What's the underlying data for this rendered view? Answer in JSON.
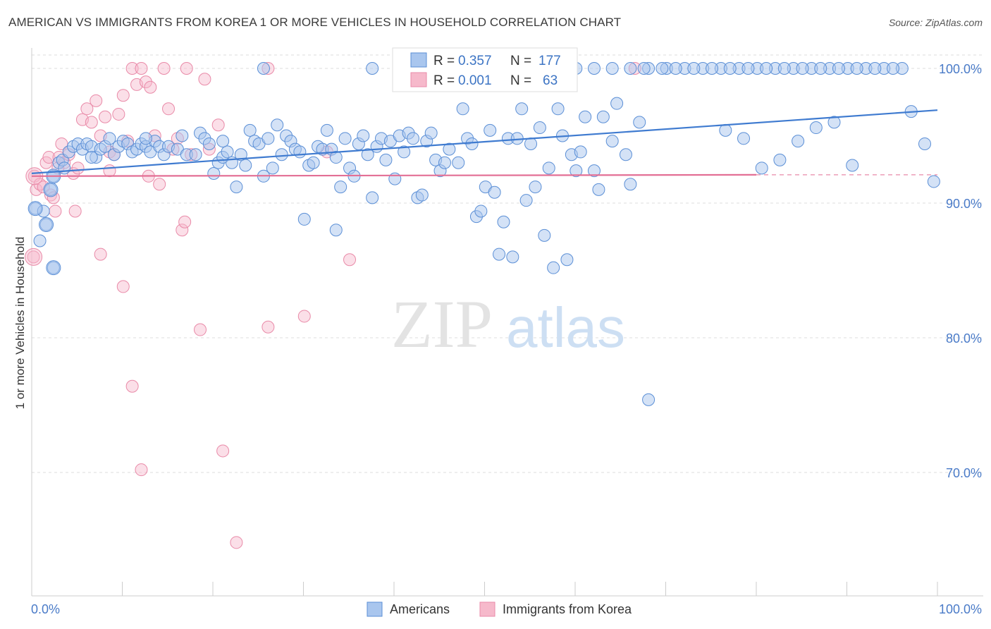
{
  "title": "AMERICAN VS IMMIGRANTS FROM KOREA 1 OR MORE VEHICLES IN HOUSEHOLD CORRELATION CHART",
  "source": "Source: ZipAtlas.com",
  "watermark": {
    "zip": "ZIP",
    "atlas": "atlas"
  },
  "colors": {
    "blue_fill": "#a9c6ee",
    "blue_stroke": "#5b8fd6",
    "blue_line": "#3f7bd0",
    "pink_fill": "#f6b9cb",
    "pink_stroke": "#e98aa8",
    "pink_line": "#e36f95",
    "grid": "#dddddd",
    "axis_text": "#4a7bc8"
  },
  "stats_legend": {
    "rows": [
      {
        "r_label": "R =",
        "r_value": "0.357",
        "n_label": "N =",
        "n_value": "177"
      },
      {
        "r_label": "R =",
        "r_value": "0.001",
        "n_label": "N =",
        "n_value": "63"
      }
    ]
  },
  "chart_data": {
    "type": "scatter",
    "xlabel": "",
    "ylabel": "1 or more Vehicles in Household",
    "xlim": [
      0,
      100
    ],
    "ylim": [
      60,
      104
    ],
    "x_tick_labels": [
      "0.0%",
      "100.0%"
    ],
    "y_ticks": [
      70,
      80,
      90,
      100
    ],
    "y_tick_labels": [
      "70.0%",
      "80.0%",
      "90.0%",
      "100.0%"
    ],
    "grid": "horizontal-dashed",
    "legend_position": "bottom-center",
    "series": [
      {
        "name": "Americans",
        "trend": {
          "x": [
            0,
            100
          ],
          "y": [
            92.1,
            96.9
          ]
        },
        "points": [
          [
            0.4,
            89.6
          ],
          [
            0.9,
            87.2
          ],
          [
            1.3,
            89.4
          ],
          [
            1.6,
            88.4
          ],
          [
            2.1,
            91.0
          ],
          [
            2.4,
            85.2
          ],
          [
            3.0,
            93.0
          ],
          [
            3.4,
            93.2
          ],
          [
            3.6,
            92.6
          ],
          [
            2.4,
            92.0
          ],
          [
            4.1,
            93.8
          ],
          [
            4.6,
            94.2
          ],
          [
            5.1,
            94.4
          ],
          [
            5.6,
            94.0
          ],
          [
            6.1,
            94.4
          ],
          [
            6.6,
            94.2
          ],
          [
            7.1,
            93.4
          ],
          [
            7.6,
            94.0
          ],
          [
            8.1,
            94.2
          ],
          [
            8.6,
            94.8
          ],
          [
            9.1,
            93.6
          ],
          [
            9.6,
            94.2
          ],
          [
            10.1,
            94.6
          ],
          [
            10.6,
            94.4
          ],
          [
            11.1,
            93.8
          ],
          [
            11.6,
            94.0
          ],
          [
            12.1,
            94.4
          ],
          [
            12.6,
            94.2
          ],
          [
            13.1,
            93.8
          ],
          [
            13.6,
            94.6
          ],
          [
            14.1,
            94.2
          ],
          [
            14.6,
            93.6
          ],
          [
            15.1,
            94.2
          ],
          [
            16.1,
            94.0
          ],
          [
            16.6,
            95.0
          ],
          [
            17.1,
            93.6
          ],
          [
            18.1,
            93.6
          ],
          [
            18.6,
            95.2
          ],
          [
            19.1,
            94.8
          ],
          [
            19.6,
            94.4
          ],
          [
            20.1,
            92.2
          ],
          [
            20.6,
            93.0
          ],
          [
            21.1,
            93.4
          ],
          [
            21.6,
            93.8
          ],
          [
            22.1,
            93.0
          ],
          [
            22.6,
            91.2
          ],
          [
            23.1,
            93.6
          ],
          [
            23.6,
            92.8
          ],
          [
            24.1,
            95.4
          ],
          [
            24.6,
            94.6
          ],
          [
            25.1,
            94.4
          ],
          [
            25.6,
            92.0
          ],
          [
            26.1,
            94.8
          ],
          [
            26.6,
            92.6
          ],
          [
            27.1,
            95.8
          ],
          [
            27.6,
            93.6
          ],
          [
            28.1,
            95.0
          ],
          [
            28.6,
            94.6
          ],
          [
            29.1,
            94.0
          ],
          [
            29.6,
            93.8
          ],
          [
            30.1,
            88.8
          ],
          [
            30.6,
            92.8
          ],
          [
            31.1,
            93.0
          ],
          [
            31.6,
            94.2
          ],
          [
            32.1,
            94.0
          ],
          [
            32.6,
            95.4
          ],
          [
            33.1,
            94.0
          ],
          [
            33.6,
            93.4
          ],
          [
            34.1,
            91.2
          ],
          [
            34.6,
            94.8
          ],
          [
            35.1,
            92.6
          ],
          [
            35.6,
            92.0
          ],
          [
            36.1,
            94.4
          ],
          [
            36.6,
            95.0
          ],
          [
            37.1,
            93.6
          ],
          [
            37.6,
            90.4
          ],
          [
            38.1,
            94.2
          ],
          [
            38.6,
            94.8
          ],
          [
            39.1,
            93.2
          ],
          [
            39.6,
            94.6
          ],
          [
            40.1,
            91.8
          ],
          [
            40.6,
            95.0
          ],
          [
            41.1,
            93.8
          ],
          [
            41.6,
            95.2
          ],
          [
            42.1,
            94.8
          ],
          [
            42.6,
            90.4
          ],
          [
            43.1,
            90.6
          ],
          [
            43.6,
            94.6
          ],
          [
            44.1,
            95.2
          ],
          [
            44.6,
            93.2
          ],
          [
            45.1,
            92.4
          ],
          [
            45.6,
            93.0
          ],
          [
            46.1,
            94.0
          ],
          [
            47.1,
            93.0
          ],
          [
            47.6,
            97.0
          ],
          [
            48.1,
            94.8
          ],
          [
            48.6,
            94.4
          ],
          [
            49.1,
            89.0
          ],
          [
            49.6,
            89.4
          ],
          [
            50.1,
            91.2
          ],
          [
            50.6,
            95.4
          ],
          [
            51.1,
            90.8
          ],
          [
            51.6,
            86.2
          ],
          [
            52.1,
            88.6
          ],
          [
            52.6,
            94.8
          ],
          [
            53.1,
            86.0
          ],
          [
            53.6,
            94.8
          ],
          [
            54.1,
            97.0
          ],
          [
            54.6,
            90.2
          ],
          [
            55.1,
            94.4
          ],
          [
            55.6,
            91.2
          ],
          [
            56.1,
            95.6
          ],
          [
            56.6,
            87.6
          ],
          [
            57.1,
            92.6
          ],
          [
            57.6,
            85.2
          ],
          [
            58.1,
            97.0
          ],
          [
            58.6,
            95.0
          ],
          [
            59.1,
            85.8
          ],
          [
            59.6,
            93.6
          ],
          [
            60.1,
            92.4
          ],
          [
            60.6,
            93.8
          ],
          [
            61.1,
            96.4
          ],
          [
            62.1,
            92.4
          ],
          [
            62.6,
            91.0
          ],
          [
            63.1,
            96.4
          ],
          [
            64.1,
            94.6
          ],
          [
            64.6,
            97.4
          ],
          [
            65.6,
            93.6
          ],
          [
            66.1,
            91.4
          ],
          [
            67.1,
            96.0
          ],
          [
            68.1,
            75.4
          ],
          [
            55.1,
            99.4
          ],
          [
            57.1,
            99.2
          ],
          [
            58.6,
            100.0
          ],
          [
            60.1,
            100.0
          ],
          [
            62.1,
            100.0
          ],
          [
            64.1,
            100.0
          ],
          [
            66.1,
            100.0
          ],
          [
            68.1,
            100.0
          ],
          [
            70.1,
            100.0
          ],
          [
            72.1,
            100.0
          ],
          [
            74.1,
            100.0
          ],
          [
            76.1,
            100.0
          ],
          [
            78.1,
            100.0
          ],
          [
            80.1,
            100.0
          ],
          [
            82.1,
            100.0
          ],
          [
            84.1,
            100.0
          ],
          [
            86.1,
            100.0
          ],
          [
            88.1,
            100.0
          ],
          [
            90.1,
            100.0
          ],
          [
            92.1,
            100.0
          ],
          [
            94.1,
            100.0
          ],
          [
            96.1,
            100.0
          ],
          [
            97.1,
            96.8
          ],
          [
            98.6,
            94.4
          ],
          [
            99.6,
            91.6
          ],
          [
            25.6,
            100.0
          ],
          [
            43.6,
            100.0
          ],
          [
            45.6,
            100.0
          ],
          [
            37.6,
            100.0
          ],
          [
            71.1,
            100.0
          ],
          [
            73.1,
            100.0
          ],
          [
            75.1,
            100.0
          ],
          [
            77.1,
            100.0
          ],
          [
            79.1,
            100.0
          ],
          [
            81.1,
            100.0
          ],
          [
            83.1,
            100.0
          ],
          [
            85.1,
            100.0
          ],
          [
            87.1,
            100.0
          ],
          [
            89.1,
            100.0
          ],
          [
            91.1,
            100.0
          ],
          [
            93.1,
            100.0
          ],
          [
            95.1,
            100.0
          ],
          [
            67.6,
            100.0
          ],
          [
            69.6,
            100.0
          ],
          [
            76.6,
            95.4
          ],
          [
            78.6,
            94.8
          ],
          [
            80.6,
            92.6
          ],
          [
            82.6,
            93.2
          ],
          [
            84.6,
            94.6
          ],
          [
            86.6,
            95.6
          ],
          [
            88.6,
            96.0
          ],
          [
            90.6,
            92.8
          ],
          [
            33.6,
            88.0
          ],
          [
            12.6,
            94.8
          ],
          [
            6.6,
            93.4
          ],
          [
            21.1,
            94.6
          ]
        ]
      },
      {
        "name": "Immigrants from Korea",
        "trend": {
          "x": [
            0,
            80
          ],
          "y": [
            92.0,
            92.1
          ]
        },
        "trend_dashed": {
          "x": [
            80,
            100
          ],
          "y": [
            92.1,
            92.1
          ]
        },
        "points": [
          [
            0.3,
            92.0
          ],
          [
            0.5,
            91.0
          ],
          [
            0.9,
            91.4
          ],
          [
            1.3,
            91.2
          ],
          [
            1.6,
            93.0
          ],
          [
            1.9,
            93.4
          ],
          [
            2.1,
            90.6
          ],
          [
            2.4,
            90.4
          ],
          [
            2.6,
            89.4
          ],
          [
            3.0,
            93.4
          ],
          [
            3.3,
            94.4
          ],
          [
            3.6,
            93.0
          ],
          [
            4.1,
            93.6
          ],
          [
            4.6,
            92.2
          ],
          [
            4.8,
            89.4
          ],
          [
            5.1,
            92.6
          ],
          [
            5.6,
            96.2
          ],
          [
            6.1,
            97.0
          ],
          [
            6.6,
            96.0
          ],
          [
            7.1,
            97.6
          ],
          [
            7.6,
            95.0
          ],
          [
            8.1,
            96.4
          ],
          [
            8.6,
            93.8
          ],
          [
            9.1,
            93.6
          ],
          [
            9.6,
            96.6
          ],
          [
            10.1,
            98.0
          ],
          [
            10.6,
            94.6
          ],
          [
            11.1,
            100.0
          ],
          [
            11.6,
            98.8
          ],
          [
            12.1,
            100.0
          ],
          [
            12.6,
            99.0
          ],
          [
            13.1,
            98.6
          ],
          [
            13.6,
            95.0
          ],
          [
            14.1,
            91.4
          ],
          [
            14.6,
            100.0
          ],
          [
            15.1,
            97.0
          ],
          [
            15.6,
            94.0
          ],
          [
            16.1,
            94.8
          ],
          [
            16.6,
            88.0
          ],
          [
            16.9,
            88.6
          ],
          [
            17.1,
            100.0
          ],
          [
            17.6,
            93.6
          ],
          [
            18.6,
            80.6
          ],
          [
            19.1,
            99.2
          ],
          [
            19.6,
            94.0
          ],
          [
            20.6,
            95.8
          ],
          [
            21.1,
            71.6
          ],
          [
            22.6,
            64.8
          ],
          [
            7.6,
            86.2
          ],
          [
            10.1,
            83.8
          ],
          [
            11.1,
            76.4
          ],
          [
            12.1,
            70.2
          ],
          [
            26.1,
            80.8
          ],
          [
            30.1,
            81.6
          ],
          [
            35.1,
            85.8
          ],
          [
            26.1,
            100.0
          ],
          [
            42.6,
            100.0
          ],
          [
            66.6,
            100.0
          ],
          [
            0.2,
            86.0
          ],
          [
            2.9,
            92.6
          ],
          [
            32.6,
            93.8
          ],
          [
            12.9,
            92.0
          ],
          [
            8.6,
            92.4
          ]
        ]
      }
    ]
  },
  "bottom_legend": [
    "Americans",
    "Immigrants from Korea"
  ]
}
